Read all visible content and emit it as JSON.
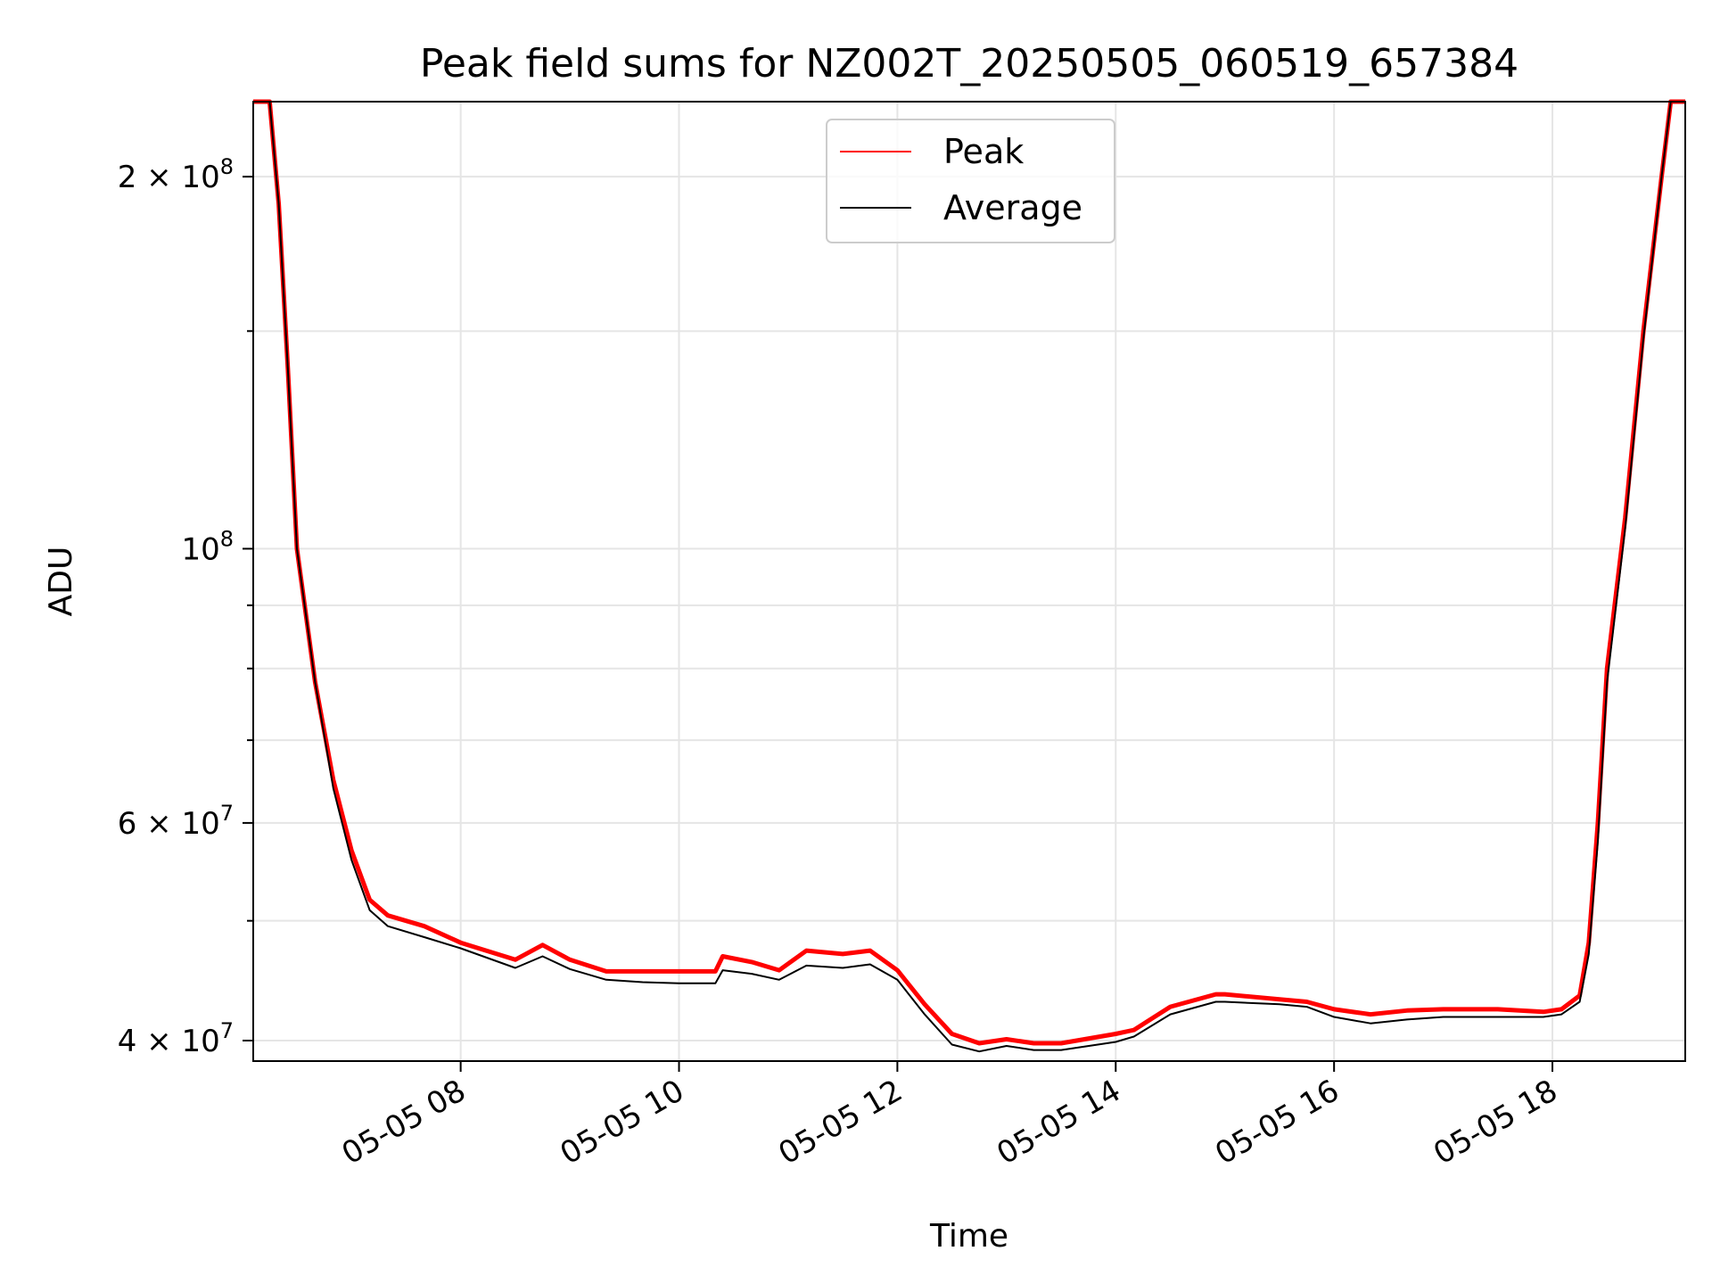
{
  "chart_data": {
    "type": "line",
    "title": "Peak field sums for NZ002T_20250505_060519_657384",
    "xlabel": "Time",
    "ylabel": "ADU",
    "x_scale": "time",
    "y_scale": "log",
    "xlim": [
      "05-05 06:06",
      "05-05 19:13"
    ],
    "ylim": [
      38500000,
      230000000
    ],
    "grid": true,
    "legend": "upper center",
    "x_ticks": [
      {
        "value": "05-05 08:00",
        "label": "05-05 08"
      },
      {
        "value": "05-05 10:00",
        "label": "05-05 10"
      },
      {
        "value": "05-05 12:00",
        "label": "05-05 12"
      },
      {
        "value": "05-05 14:00",
        "label": "05-05 14"
      },
      {
        "value": "05-05 16:00",
        "label": "05-05 16"
      },
      {
        "value": "05-05 18:00",
        "label": "05-05 18"
      }
    ],
    "y_ticks": [
      {
        "value": 40000000,
        "label": "4 × 10",
        "exp": "7"
      },
      {
        "value": 60000000,
        "label": "6 × 10",
        "exp": "7"
      },
      {
        "value": 100000000,
        "label": "10",
        "exp": "8"
      },
      {
        "value": 200000000,
        "label": "2 × 10",
        "exp": "8"
      }
    ],
    "series": [
      {
        "name": "Peak",
        "color": "#ff0000",
        "x": [
          "05-05 06:06",
          "05-05 06:15",
          "05-05 06:20",
          "05-05 06:25",
          "05-05 06:30",
          "05-05 06:40",
          "05-05 06:50",
          "05-05 07:00",
          "05-05 07:10",
          "05-05 07:20",
          "05-05 07:40",
          "05-05 08:00",
          "05-05 08:30",
          "05-05 08:45",
          "05-05 09:00",
          "05-05 09:20",
          "05-05 09:40",
          "05-05 10:00",
          "05-05 10:20",
          "05-05 10:24",
          "05-05 10:40",
          "05-05 10:55",
          "05-05 11:10",
          "05-05 11:30",
          "05-05 11:45",
          "05-05 12:00",
          "05-05 12:15",
          "05-05 12:30",
          "05-05 12:45",
          "05-05 13:00",
          "05-05 13:15",
          "05-05 13:30",
          "05-05 14:00",
          "05-05 14:10",
          "05-05 14:30",
          "05-05 14:55",
          "05-05 15:00",
          "05-05 15:30",
          "05-05 15:45",
          "05-05 16:00",
          "05-05 16:20",
          "05-05 16:40",
          "05-05 17:00",
          "05-05 17:30",
          "05-05 17:55",
          "05-05 18:05",
          "05-05 18:15",
          "05-05 18:20",
          "05-05 18:25",
          "05-05 18:30",
          "05-05 18:40",
          "05-05 18:50",
          "05-05 19:00",
          "05-05 19:05",
          "05-05 19:13"
        ],
        "y": [
          230000000,
          230000000,
          190000000,
          140000000,
          100000000,
          78000000,
          65000000,
          57000000,
          52000000,
          50500000,
          49500000,
          48000000,
          46500000,
          47800000,
          46500000,
          45500000,
          45500000,
          45500000,
          45500000,
          46800000,
          46300000,
          45600000,
          47300000,
          47000000,
          47300000,
          45600000,
          42800000,
          40500000,
          39800000,
          40100000,
          39800000,
          39800000,
          40500000,
          40800000,
          42600000,
          43600000,
          43600000,
          43200000,
          43000000,
          42400000,
          42000000,
          42300000,
          42400000,
          42400000,
          42200000,
          42400000,
          43500000,
          48000000,
          60000000,
          80000000,
          106000000,
          150000000,
          200000000,
          230000000,
          230000000
        ]
      },
      {
        "name": "Average",
        "color": "#000000",
        "x": [
          "05-05 06:06",
          "05-05 06:15",
          "05-05 06:20",
          "05-05 06:25",
          "05-05 06:30",
          "05-05 06:40",
          "05-05 06:50",
          "05-05 07:00",
          "05-05 07:10",
          "05-05 07:20",
          "05-05 07:40",
          "05-05 08:00",
          "05-05 08:30",
          "05-05 08:45",
          "05-05 09:00",
          "05-05 09:20",
          "05-05 09:40",
          "05-05 10:00",
          "05-05 10:20",
          "05-05 10:24",
          "05-05 10:40",
          "05-05 10:55",
          "05-05 11:10",
          "05-05 11:30",
          "05-05 11:45",
          "05-05 12:00",
          "05-05 12:15",
          "05-05 12:30",
          "05-05 12:45",
          "05-05 13:00",
          "05-05 13:15",
          "05-05 13:30",
          "05-05 14:00",
          "05-05 14:10",
          "05-05 14:30",
          "05-05 14:55",
          "05-05 15:00",
          "05-05 15:30",
          "05-05 15:45",
          "05-05 16:00",
          "05-05 16:20",
          "05-05 16:40",
          "05-05 17:00",
          "05-05 17:30",
          "05-05 17:55",
          "05-05 18:05",
          "05-05 18:15",
          "05-05 18:20",
          "05-05 18:25",
          "05-05 18:30",
          "05-05 18:40",
          "05-05 18:50",
          "05-05 19:00",
          "05-05 19:05",
          "05-05 19:13"
        ],
        "y": [
          230000000,
          230000000,
          190000000,
          140000000,
          100000000,
          78000000,
          64000000,
          56000000,
          51000000,
          49500000,
          48500000,
          47500000,
          45800000,
          46800000,
          45700000,
          44800000,
          44600000,
          44500000,
          44500000,
          45600000,
          45300000,
          44800000,
          46000000,
          45800000,
          46100000,
          44800000,
          42000000,
          39700000,
          39200000,
          39600000,
          39300000,
          39300000,
          39900000,
          40300000,
          42000000,
          43000000,
          43000000,
          42800000,
          42600000,
          41800000,
          41300000,
          41600000,
          41800000,
          41800000,
          41800000,
          42000000,
          43000000,
          47000000,
          58000000,
          78000000,
          104000000,
          148000000,
          200000000,
          230000000,
          230000000
        ]
      }
    ]
  }
}
